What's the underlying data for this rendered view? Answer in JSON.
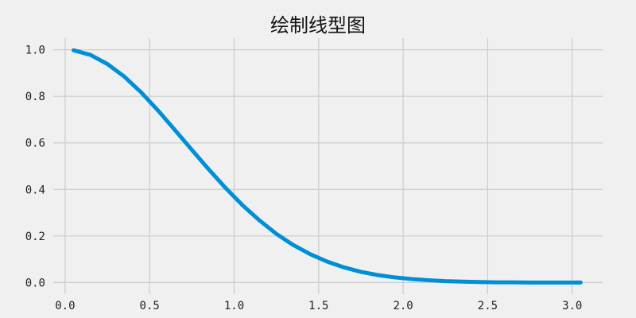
{
  "chart_data": {
    "type": "line",
    "title": "绘制线型图",
    "xlabel": "",
    "ylabel": "",
    "xlim": [
      -0.07,
      3.18
    ],
    "ylim": [
      -0.05,
      1.05
    ],
    "grid": true,
    "x_ticks": [
      {
        "value": 0.0,
        "label": "0.0"
      },
      {
        "value": 0.5,
        "label": "0.5"
      },
      {
        "value": 1.0,
        "label": "1.0"
      },
      {
        "value": 1.5,
        "label": "1.5"
      },
      {
        "value": 2.0,
        "label": "2.0"
      },
      {
        "value": 2.5,
        "label": "2.5"
      },
      {
        "value": 3.0,
        "label": "3.0"
      }
    ],
    "y_ticks": [
      {
        "value": 0.0,
        "label": "0.0"
      },
      {
        "value": 0.2,
        "label": "0.2"
      },
      {
        "value": 0.4,
        "label": "0.4"
      },
      {
        "value": 0.6,
        "label": "0.6"
      },
      {
        "value": 0.8,
        "label": "0.8"
      },
      {
        "value": 1.0,
        "label": "1.0"
      }
    ],
    "series": [
      {
        "name": "",
        "color": "#008fd5",
        "x": [
          0.05,
          0.15,
          0.25,
          0.35,
          0.45,
          0.55,
          0.65,
          0.75,
          0.85,
          0.95,
          1.05,
          1.15,
          1.25,
          1.35,
          1.45,
          1.55,
          1.65,
          1.75,
          1.85,
          1.95,
          2.05,
          2.15,
          2.25,
          2.35,
          2.45,
          2.55,
          2.65,
          2.75,
          2.85,
          2.95,
          3.05
        ],
        "y": [
          0.998,
          0.978,
          0.939,
          0.885,
          0.817,
          0.739,
          0.655,
          0.57,
          0.486,
          0.406,
          0.332,
          0.267,
          0.209,
          0.161,
          0.122,
          0.09,
          0.065,
          0.046,
          0.032,
          0.022,
          0.015,
          0.01,
          0.006,
          0.004,
          0.002,
          0.001,
          0.001,
          0.0,
          0.0,
          0.0,
          0.0
        ]
      }
    ]
  }
}
